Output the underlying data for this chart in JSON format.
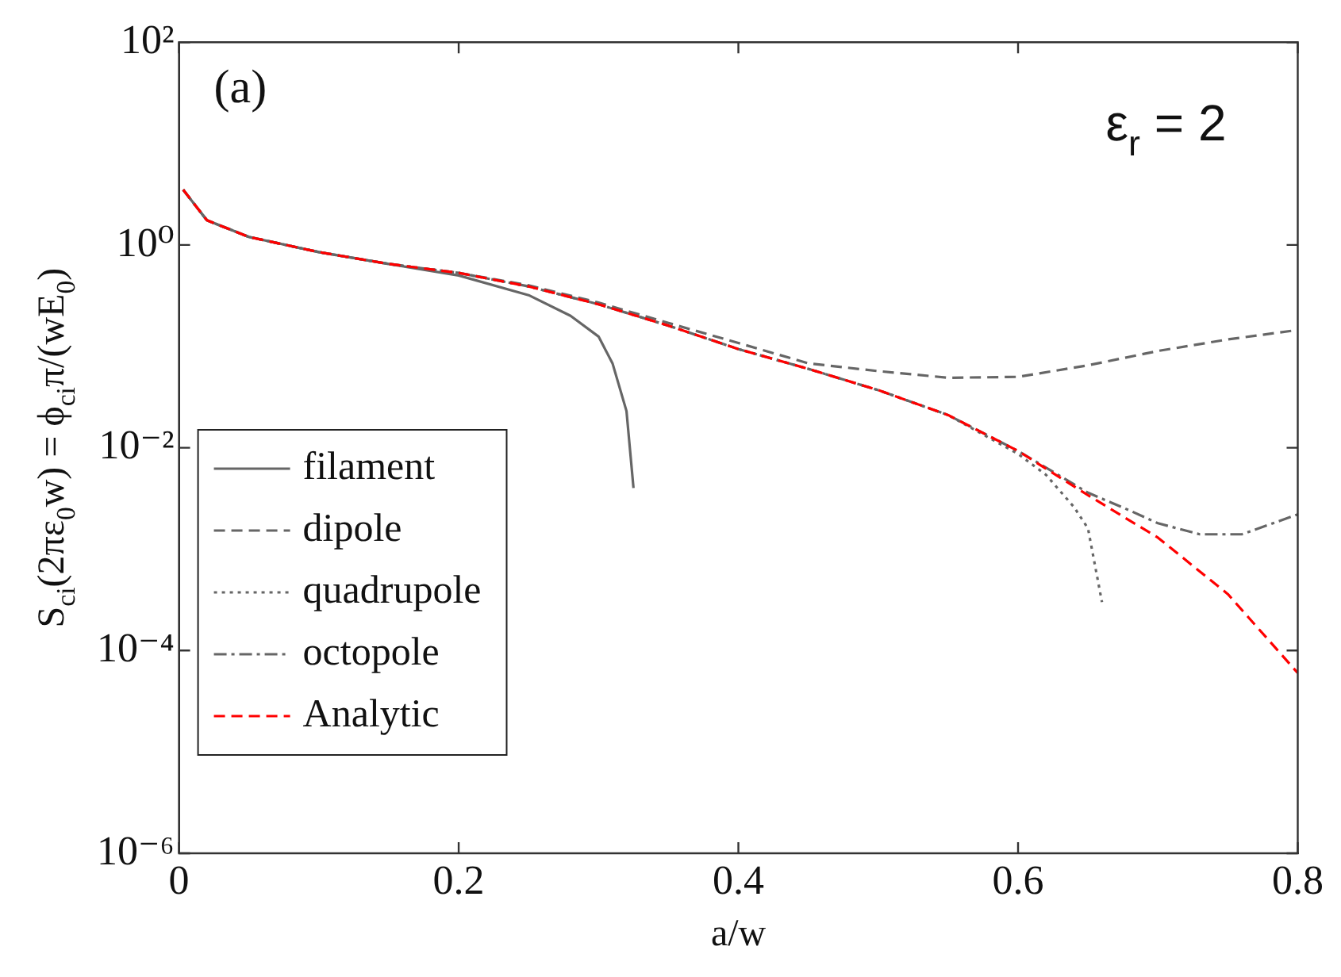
{
  "chart_data": {
    "type": "line",
    "xlabel": "a/w",
    "ylabel": "S$_{ci}$(2πε$_{0}$w) = ϕ$_{ci}$π/(wE$_{0}$)",
    "log": "y",
    "xlim": [
      0,
      0.8
    ],
    "xticks": [
      0,
      0.2,
      0.4,
      0.6,
      0.8
    ],
    "ylim": [
      1e-06,
      100
    ],
    "yticks": [
      {
        "value": 1e-06,
        "label": "10⁻⁶"
      },
      {
        "value": 0.0001,
        "label": "10⁻⁴"
      },
      {
        "value": 0.01,
        "label": "10⁻²"
      },
      {
        "value": 1,
        "label": "10⁰"
      },
      {
        "value": 100,
        "label": "10²"
      }
    ],
    "legend": "bottom left",
    "marker": "none",
    "annotations": [
      "(a)",
      "ε$_{r}$ = 2"
    ],
    "series": [
      {
        "name": "filament",
        "color": "#666666",
        "line_style": "solid",
        "x": [
          0.003,
          0.02,
          0.05,
          0.1,
          0.15,
          0.2,
          0.25,
          0.28,
          0.3,
          0.31,
          0.32,
          0.325
        ],
        "values": [
          3.5,
          1.75,
          1.2,
          0.85,
          0.65,
          0.5,
          0.32,
          0.2,
          0.125,
          0.068,
          0.023,
          0.004
        ]
      },
      {
        "name": "dipole",
        "color": "#666666",
        "line_style": "dashed",
        "x": [
          0.003,
          0.02,
          0.05,
          0.1,
          0.15,
          0.2,
          0.25,
          0.3,
          0.35,
          0.4,
          0.45,
          0.5,
          0.55,
          0.6,
          0.65,
          0.7,
          0.75,
          0.8
        ],
        "values": [
          3.5,
          1.75,
          1.2,
          0.85,
          0.65,
          0.53,
          0.4,
          0.27,
          0.17,
          0.108,
          0.068,
          0.057,
          0.049,
          0.05,
          0.065,
          0.09,
          0.117,
          0.145
        ]
      },
      {
        "name": "quadrupole",
        "color": "#666666",
        "line_style": "dotted",
        "x": [
          0.003,
          0.02,
          0.05,
          0.1,
          0.15,
          0.2,
          0.25,
          0.3,
          0.35,
          0.4,
          0.45,
          0.5,
          0.55,
          0.6,
          0.62,
          0.64,
          0.65,
          0.66
        ],
        "values": [
          3.5,
          1.75,
          1.2,
          0.85,
          0.65,
          0.53,
          0.39,
          0.26,
          0.16,
          0.094,
          0.06,
          0.037,
          0.021,
          0.0087,
          0.0054,
          0.0026,
          0.0016,
          0.0003
        ]
      },
      {
        "name": "octopole",
        "color": "#666666",
        "line_style": "dashdot",
        "x": [
          0.003,
          0.02,
          0.05,
          0.1,
          0.15,
          0.2,
          0.25,
          0.3,
          0.35,
          0.4,
          0.45,
          0.5,
          0.55,
          0.6,
          0.65,
          0.68,
          0.7,
          0.73,
          0.76,
          0.8
        ],
        "values": [
          3.5,
          1.75,
          1.2,
          0.85,
          0.65,
          0.53,
          0.39,
          0.26,
          0.16,
          0.094,
          0.06,
          0.037,
          0.021,
          0.0093,
          0.0036,
          0.0024,
          0.0018,
          0.0014,
          0.0014,
          0.0022
        ]
      },
      {
        "name": "Analytic",
        "color": "#ff0000",
        "line_style": "dashed",
        "x": [
          0.003,
          0.02,
          0.05,
          0.1,
          0.15,
          0.2,
          0.25,
          0.3,
          0.35,
          0.4,
          0.45,
          0.5,
          0.55,
          0.6,
          0.65,
          0.7,
          0.75,
          0.8
        ],
        "values": [
          3.5,
          1.75,
          1.2,
          0.85,
          0.65,
          0.53,
          0.39,
          0.26,
          0.16,
          0.094,
          0.06,
          0.037,
          0.021,
          0.0093,
          0.0034,
          0.0013,
          0.00036,
          6e-05
        ]
      }
    ]
  }
}
